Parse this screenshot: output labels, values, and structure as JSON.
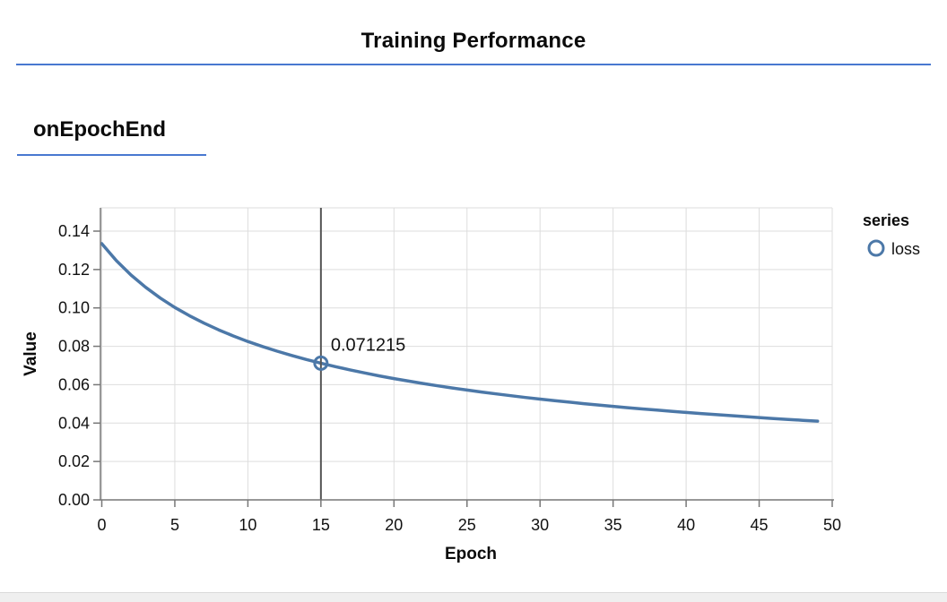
{
  "page": {
    "title": "Training Performance"
  },
  "section": {
    "title": "onEpochEnd"
  },
  "legend": {
    "title": "series",
    "items": [
      {
        "label": "loss",
        "marker": "open-circle-icon",
        "color": "#4c78a8"
      }
    ]
  },
  "colors": {
    "rule_blue": "#4878d0",
    "series_blue": "#4c78a8",
    "grid": "#dddddd",
    "axis": "#777777",
    "crosshair": "#555555",
    "label": "#111111",
    "footer_strip": "#efefef"
  },
  "chart_data": {
    "type": "line",
    "title": "onEpochEnd",
    "xlabel": "Epoch",
    "ylabel": "Value",
    "xlim": [
      0,
      50
    ],
    "ylim": [
      0,
      0.152
    ],
    "grid": true,
    "legend_position": "right",
    "x_ticks": [
      0,
      5,
      10,
      15,
      20,
      25,
      30,
      35,
      40,
      45,
      50
    ],
    "x_tick_labels": [
      "0",
      "5",
      "10",
      "15",
      "20",
      "25",
      "30",
      "35",
      "40",
      "45",
      "50"
    ],
    "y_ticks": [
      0,
      0.02,
      0.04,
      0.06,
      0.08,
      0.1,
      0.12,
      0.14
    ],
    "y_tick_labels": [
      "0.00",
      "0.02",
      "0.04",
      "0.06",
      "0.08",
      "0.10",
      "0.12",
      "0.14"
    ],
    "series": [
      {
        "name": "loss",
        "x": [
          0,
          1,
          2,
          3,
          4,
          5,
          6,
          7,
          8,
          9,
          10,
          11,
          12,
          13,
          14,
          15,
          16,
          17,
          18,
          19,
          20,
          21,
          22,
          23,
          24,
          25,
          26,
          27,
          28,
          29,
          30,
          31,
          32,
          33,
          34,
          35,
          36,
          37,
          38,
          39,
          40,
          41,
          42,
          43,
          44,
          45,
          46,
          47,
          48,
          49
        ],
        "values": [
          0.13349,
          0.1246,
          0.11714,
          0.11073,
          0.10515,
          0.10026,
          0.09594,
          0.09207,
          0.08857,
          0.08541,
          0.08253,
          0.07989,
          0.07746,
          0.07521,
          0.07313,
          0.071215,
          0.0694,
          0.0677,
          0.06611,
          0.06461,
          0.0632,
          0.06187,
          0.06061,
          0.05941,
          0.05828,
          0.0572,
          0.05617,
          0.05519,
          0.05426,
          0.05336,
          0.05251,
          0.05169,
          0.0509,
          0.05014,
          0.04941,
          0.04871,
          0.04804,
          0.04738,
          0.04675,
          0.04614,
          0.04556,
          0.04498,
          0.04443,
          0.0439,
          0.04338,
          0.04288,
          0.04239,
          0.04192,
          0.04146,
          0.04101
        ]
      }
    ],
    "highlight": {
      "epoch": 15,
      "value": 0.071215,
      "label": "0.071215"
    }
  }
}
